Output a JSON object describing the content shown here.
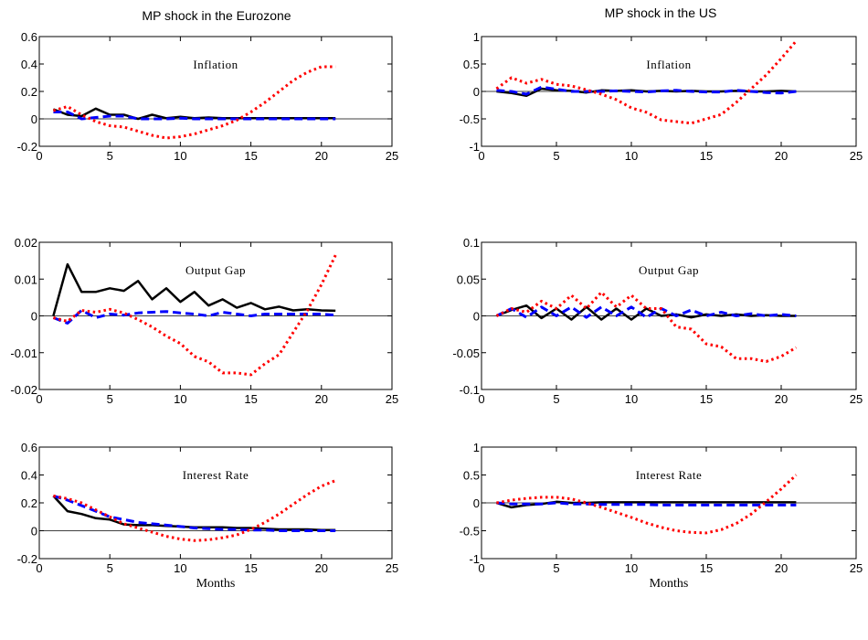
{
  "figure": {
    "column_titles": [
      "MP shock in the Eurozone",
      "MP shock in the US"
    ],
    "series_styles": [
      {
        "color": "#000000",
        "dash": "solid",
        "width": 2.5
      },
      {
        "color": "#0000ff",
        "dash": "dashed",
        "width": 3
      },
      {
        "color": "#ff0000",
        "dash": "dotted",
        "width": 3
      }
    ]
  },
  "chart_data": [
    {
      "type": "line",
      "column": "MP shock in the Eurozone",
      "title": "Inflation",
      "xlabel": "",
      "xlim": [
        0,
        25
      ],
      "ylim": [
        -0.2,
        0.6
      ],
      "xticks": [
        0,
        5,
        10,
        15,
        20,
        25
      ],
      "xtick_labels": [
        "0",
        "5",
        "10",
        "15",
        "20",
        "25"
      ],
      "yticks": [
        -0.2,
        0,
        0.2,
        0.4,
        0.6
      ],
      "ytick_labels": [
        "-0.2",
        "0",
        "0.2",
        "0.4",
        "0.6"
      ],
      "zero_line": [
        0,
        25
      ],
      "x": [
        1,
        2,
        3,
        4,
        5,
        6,
        7,
        8,
        9,
        10,
        11,
        12,
        13,
        14,
        15,
        16,
        17,
        18,
        19,
        20,
        21
      ],
      "series": [
        {
          "values": [
            0.07,
            0.03,
            0.02,
            0.075,
            0.03,
            0.03,
            0.0,
            0.03,
            0.005,
            0.015,
            0.005,
            0.01,
            0.005,
            0.005,
            0.005,
            0.005,
            0.005,
            0.005,
            0.005,
            0.005,
            0.005
          ]
        },
        {
          "values": [
            0.05,
            0.05,
            0.0,
            0.01,
            0.02,
            0.02,
            0.0,
            0.0,
            0.0,
            0.005,
            0.0,
            0.0,
            0.0,
            0.0,
            0.0,
            0.0,
            0.0,
            0.0,
            0.0,
            0.0,
            0.0
          ]
        },
        {
          "values": [
            0.06,
            0.09,
            0.03,
            -0.02,
            -0.05,
            -0.06,
            -0.09,
            -0.12,
            -0.14,
            -0.13,
            -0.11,
            -0.08,
            -0.05,
            -0.01,
            0.05,
            0.12,
            0.2,
            0.28,
            0.34,
            0.38,
            0.38
          ]
        }
      ]
    },
    {
      "type": "line",
      "column": "MP shock in the US",
      "title": "Inflation",
      "xlabel": "",
      "xlim": [
        0,
        25
      ],
      "ylim": [
        -1,
        1
      ],
      "xticks": [
        0,
        5,
        10,
        15,
        20,
        25
      ],
      "xtick_labels": [
        "0",
        "5",
        "10",
        "15",
        "20",
        "25"
      ],
      "yticks": [
        -1,
        -0.5,
        0,
        0.5,
        1
      ],
      "ytick_labels": [
        "-1",
        "-0.5",
        "0",
        "0.5",
        "1"
      ],
      "zero_line": [
        0,
        25
      ],
      "x": [
        1,
        2,
        3,
        4,
        5,
        6,
        7,
        8,
        9,
        10,
        11,
        12,
        13,
        14,
        15,
        16,
        17,
        18,
        19,
        20,
        21
      ],
      "series": [
        {
          "values": [
            0.0,
            -0.03,
            -0.08,
            0.05,
            0.02,
            0.01,
            -0.02,
            0.02,
            0.01,
            0.02,
            0.0,
            0.01,
            0.0,
            0.01,
            0.0,
            0.0,
            0.01,
            0.0,
            0.0,
            0.01,
            0.0
          ]
        },
        {
          "values": [
            0.02,
            0.0,
            -0.05,
            0.08,
            0.04,
            0.0,
            0.0,
            0.0,
            0.01,
            0.0,
            -0.01,
            0.01,
            0.02,
            0.0,
            -0.01,
            -0.01,
            0.02,
            0.0,
            -0.02,
            -0.03,
            0.0
          ]
        },
        {
          "values": [
            0.05,
            0.25,
            0.15,
            0.22,
            0.13,
            0.1,
            0.03,
            -0.05,
            -0.15,
            -0.3,
            -0.38,
            -0.52,
            -0.55,
            -0.58,
            -0.5,
            -0.42,
            -0.2,
            0.05,
            0.3,
            0.6,
            0.92
          ]
        }
      ]
    },
    {
      "type": "line",
      "column": "MP shock in the Eurozone",
      "title": "Output Gap",
      "xlabel": "",
      "xlim": [
        0,
        25
      ],
      "ylim": [
        -0.02,
        0.02
      ],
      "xticks": [
        0,
        5,
        10,
        15,
        20,
        25
      ],
      "xtick_labels": [
        "0",
        "5",
        "10",
        "15",
        "20",
        "25"
      ],
      "yticks": [
        -0.02,
        -0.01,
        0,
        0.01,
        0.02
      ],
      "ytick_labels": [
        "-0.02",
        "-0.01",
        "0",
        "0.01",
        "0.02"
      ],
      "zero_line": [
        0,
        25
      ],
      "x": [
        1,
        2,
        3,
        4,
        5,
        6,
        7,
        8,
        9,
        10,
        11,
        12,
        13,
        14,
        15,
        16,
        17,
        18,
        19,
        20,
        21
      ],
      "series": [
        {
          "values": [
            0.0,
            0.014,
            0.0065,
            0.0065,
            0.0075,
            0.0068,
            0.0095,
            0.0045,
            0.0075,
            0.0038,
            0.0065,
            0.0028,
            0.0045,
            0.0022,
            0.0035,
            0.0018,
            0.0025,
            0.0015,
            0.0018,
            0.0015,
            0.0014
          ]
        },
        {
          "values": [
            -0.0005,
            -0.002,
            0.0015,
            -0.0005,
            0.0005,
            0.0002,
            0.0008,
            0.001,
            0.0012,
            0.0008,
            0.0005,
            0.0,
            0.001,
            0.0005,
            0.0,
            0.0005,
            0.0005,
            0.0005,
            0.0005,
            0.0005,
            0.0002
          ]
        },
        {
          "values": [
            -0.0005,
            -0.0015,
            0.0015,
            0.001,
            0.0018,
            0.0008,
            -0.001,
            -0.003,
            -0.0055,
            -0.0075,
            -0.011,
            -0.0125,
            -0.0155,
            -0.0155,
            -0.016,
            -0.013,
            -0.0105,
            -0.0045,
            0.0015,
            0.0085,
            0.0165
          ]
        }
      ]
    },
    {
      "type": "line",
      "column": "MP shock in the US",
      "title": "Output Gap",
      "xlabel": "",
      "xlim": [
        0,
        25
      ],
      "ylim": [
        -0.1,
        0.1
      ],
      "xticks": [
        0,
        5,
        10,
        15,
        20,
        25
      ],
      "xtick_labels": [
        "0",
        "5",
        "10",
        "15",
        "20",
        "25"
      ],
      "yticks": [
        -0.1,
        -0.05,
        0,
        0.05,
        0.1
      ],
      "ytick_labels": [
        "-0.1",
        "-0.05",
        "0",
        "0.05",
        "0.1"
      ],
      "zero_line": [
        0,
        25
      ],
      "x": [
        1,
        2,
        3,
        4,
        5,
        6,
        7,
        8,
        9,
        10,
        11,
        12,
        13,
        14,
        15,
        16,
        17,
        18,
        19,
        20,
        21
      ],
      "series": [
        {
          "values": [
            0.0,
            0.008,
            0.014,
            -0.003,
            0.01,
            -0.005,
            0.012,
            -0.005,
            0.01,
            -0.005,
            0.01,
            0.0,
            0.002,
            -0.002,
            0.002,
            0.0,
            0.002,
            0.0,
            0.001,
            0.0,
            0.0
          ]
        },
        {
          "values": [
            0.0,
            0.01,
            -0.002,
            0.012,
            0.0,
            0.012,
            -0.002,
            0.012,
            0.0,
            0.012,
            -0.002,
            0.01,
            0.0,
            0.008,
            0.0,
            0.005,
            0.0,
            0.003,
            0.0,
            0.002,
            0.0
          ]
        },
        {
          "values": [
            0.0,
            0.01,
            0.005,
            0.02,
            0.01,
            0.028,
            0.01,
            0.032,
            0.012,
            0.028,
            0.01,
            0.01,
            -0.015,
            -0.018,
            -0.038,
            -0.042,
            -0.058,
            -0.058,
            -0.062,
            -0.055,
            -0.043
          ]
        }
      ]
    },
    {
      "type": "line",
      "column": "MP shock in the Eurozone",
      "title": "Interest Rate",
      "xlabel": "Months",
      "xlim": [
        0,
        25
      ],
      "ylim": [
        -0.2,
        0.6
      ],
      "xticks": [
        0,
        5,
        10,
        15,
        20,
        25
      ],
      "xtick_labels": [
        "0",
        "5",
        "10",
        "15",
        "20",
        "25"
      ],
      "yticks": [
        -0.2,
        0,
        0.2,
        0.4,
        0.6
      ],
      "ytick_labels": [
        "-0.2",
        "0",
        "0.2",
        "0.4",
        "0.6"
      ],
      "zero_line": [
        0,
        25
      ],
      "x": [
        1,
        2,
        3,
        4,
        5,
        6,
        7,
        8,
        9,
        10,
        11,
        12,
        13,
        14,
        15,
        16,
        17,
        18,
        19,
        20,
        21
      ],
      "series": [
        {
          "values": [
            0.25,
            0.14,
            0.12,
            0.09,
            0.08,
            0.045,
            0.04,
            0.04,
            0.035,
            0.03,
            0.025,
            0.025,
            0.025,
            0.02,
            0.02,
            0.015,
            0.01,
            0.01,
            0.01,
            0.005,
            0.005
          ]
        },
        {
          "values": [
            0.25,
            0.22,
            0.18,
            0.14,
            0.1,
            0.08,
            0.06,
            0.05,
            0.04,
            0.03,
            0.02,
            0.015,
            0.01,
            0.01,
            0.005,
            0.005,
            0.0,
            0.0,
            0.0,
            0.0,
            0.0
          ]
        },
        {
          "values": [
            0.25,
            0.23,
            0.2,
            0.15,
            0.1,
            0.05,
            0.02,
            -0.01,
            -0.04,
            -0.06,
            -0.07,
            -0.065,
            -0.05,
            -0.03,
            0.01,
            0.06,
            0.12,
            0.19,
            0.26,
            0.32,
            0.36
          ]
        }
      ]
    },
    {
      "type": "line",
      "column": "MP shock in the US",
      "title": "Interest Rate",
      "xlabel": "Months",
      "xlim": [
        0,
        25
      ],
      "ylim": [
        -1,
        1
      ],
      "xticks": [
        0,
        5,
        10,
        15,
        20,
        25
      ],
      "xtick_labels": [
        "0",
        "5",
        "10",
        "15",
        "20",
        "25"
      ],
      "yticks": [
        -1,
        -0.5,
        0,
        0.5,
        1
      ],
      "ytick_labels": [
        "-1",
        "-0.5",
        "0",
        "0.5",
        "1"
      ],
      "zero_line": [
        0,
        25
      ],
      "x": [
        1,
        2,
        3,
        4,
        5,
        6,
        7,
        8,
        9,
        10,
        11,
        12,
        13,
        14,
        15,
        16,
        17,
        18,
        19,
        20,
        21
      ],
      "series": [
        {
          "values": [
            0.0,
            -0.08,
            -0.04,
            -0.02,
            0.02,
            0.0,
            0.0,
            0.01,
            0.01,
            0.01,
            0.01,
            0.01,
            0.01,
            0.01,
            0.01,
            0.01,
            0.01,
            0.01,
            0.01,
            0.01,
            0.01
          ]
        },
        {
          "values": [
            0.0,
            -0.02,
            -0.02,
            -0.02,
            0.0,
            -0.02,
            -0.02,
            -0.03,
            -0.03,
            -0.03,
            -0.03,
            -0.04,
            -0.04,
            -0.04,
            -0.04,
            -0.04,
            -0.04,
            -0.04,
            -0.04,
            -0.04,
            -0.04
          ]
        },
        {
          "values": [
            0.0,
            0.05,
            0.08,
            0.1,
            0.1,
            0.07,
            0.0,
            -0.08,
            -0.17,
            -0.26,
            -0.36,
            -0.44,
            -0.5,
            -0.53,
            -0.54,
            -0.48,
            -0.37,
            -0.2,
            0.02,
            0.25,
            0.5
          ]
        }
      ]
    }
  ]
}
